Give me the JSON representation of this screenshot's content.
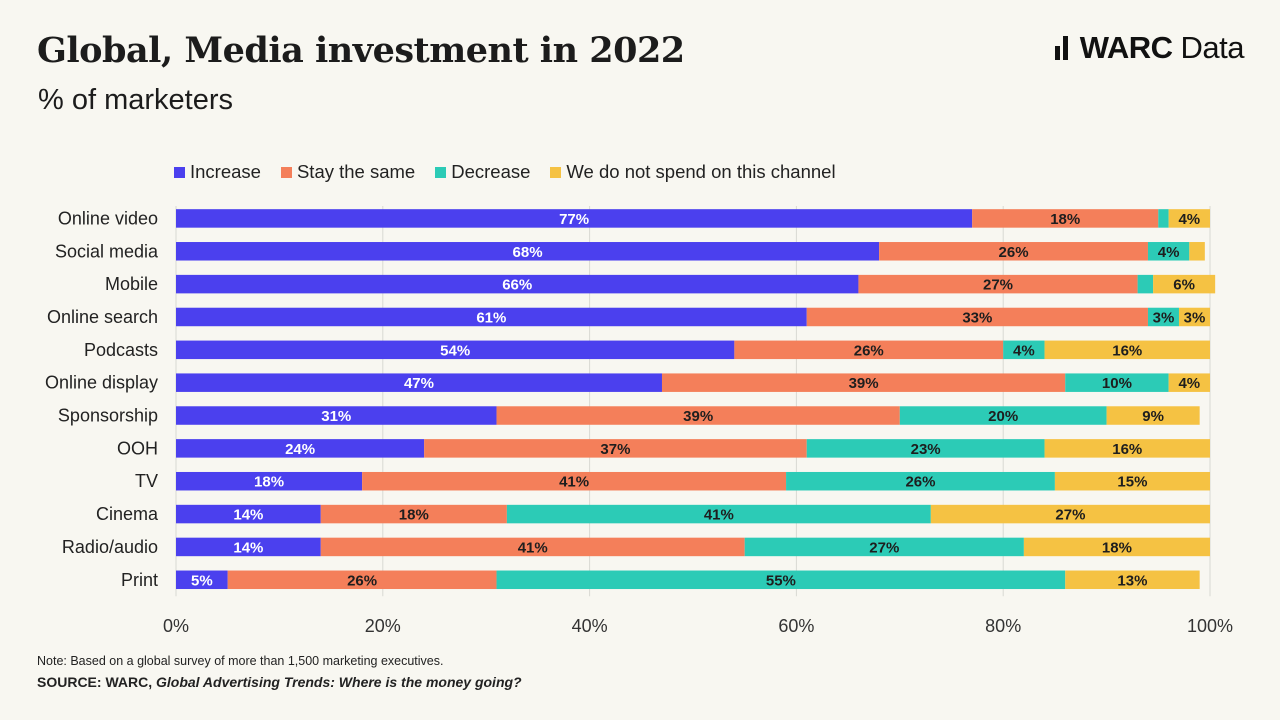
{
  "header": {
    "title": "Global, Media investment in 2022",
    "subtitle": "% of marketers"
  },
  "logo": {
    "brand": "WARC",
    "suffix": "Data"
  },
  "footer": {
    "note": "Note: Based on a global survey of more than 1,500 marketing executives.",
    "source_prefix": "SOURCE: WARC, ",
    "source_title": "Global Advertising Trends: Where is the money going?"
  },
  "colors": {
    "increase": "#4b40ee",
    "stay_the_same": "#f47f5a",
    "decrease": "#2ccbb6",
    "no_spend": "#f5c243",
    "background": "#f8f7f1",
    "gridline": "#d9d9d3"
  },
  "chart_data": {
    "type": "bar",
    "orientation": "horizontal",
    "stacked": true,
    "title": "Global, Media investment in 2022",
    "subtitle": "% of marketers",
    "categories": [
      "Online video",
      "Social media",
      "Mobile",
      "Online search",
      "Podcasts",
      "Online display",
      "Sponsorship",
      "OOH",
      "TV",
      "Cinema",
      "Radio/audio",
      "Print"
    ],
    "series": [
      {
        "name": "Increase",
        "color": "#4b40ee",
        "label_color": "#ffffff",
        "values": [
          77,
          68,
          66,
          61,
          54,
          47,
          31,
          24,
          18,
          14,
          14,
          5
        ],
        "labels": [
          "77%",
          "68%",
          "66%",
          "61%",
          "54%",
          "47%",
          "31%",
          "24%",
          "18%",
          "14%",
          "14%",
          "5%"
        ]
      },
      {
        "name": "Stay the same",
        "color": "#f47f5a",
        "label_color": "#1e1e1e",
        "values": [
          18,
          26,
          27,
          33,
          26,
          39,
          39,
          37,
          41,
          18,
          41,
          26
        ],
        "labels": [
          "18%",
          "26%",
          "27%",
          "33%",
          "26%",
          "39%",
          "39%",
          "37%",
          "41%",
          "18%",
          "41%",
          "26%"
        ]
      },
      {
        "name": "Decrease",
        "color": "#2ccbb6",
        "label_color": "#1e1e1e",
        "values": [
          1,
          4,
          1.5,
          3,
          4,
          10,
          20,
          23,
          26,
          41,
          27,
          55
        ],
        "labels": [
          "",
          "4%",
          "",
          "3%",
          "4%",
          "10%",
          "20%",
          "23%",
          "26%",
          "41%",
          "27%",
          "55%"
        ]
      },
      {
        "name": "We do not spend on this channel",
        "color": "#f5c243",
        "label_color": "#1e1e1e",
        "values": [
          4,
          1.5,
          6,
          3,
          16,
          4,
          9,
          16,
          15,
          27,
          18,
          13
        ],
        "labels": [
          "4%",
          "",
          "6%",
          "3%",
          "16%",
          "4%",
          "9%",
          "16%",
          "15%",
          "27%",
          "18%",
          "13%"
        ]
      }
    ],
    "xlim": [
      0,
      100
    ],
    "xticks": [
      "0%",
      "20%",
      "40%",
      "60%",
      "80%",
      "100%"
    ],
    "grid": true,
    "legend_position": "top-left"
  }
}
